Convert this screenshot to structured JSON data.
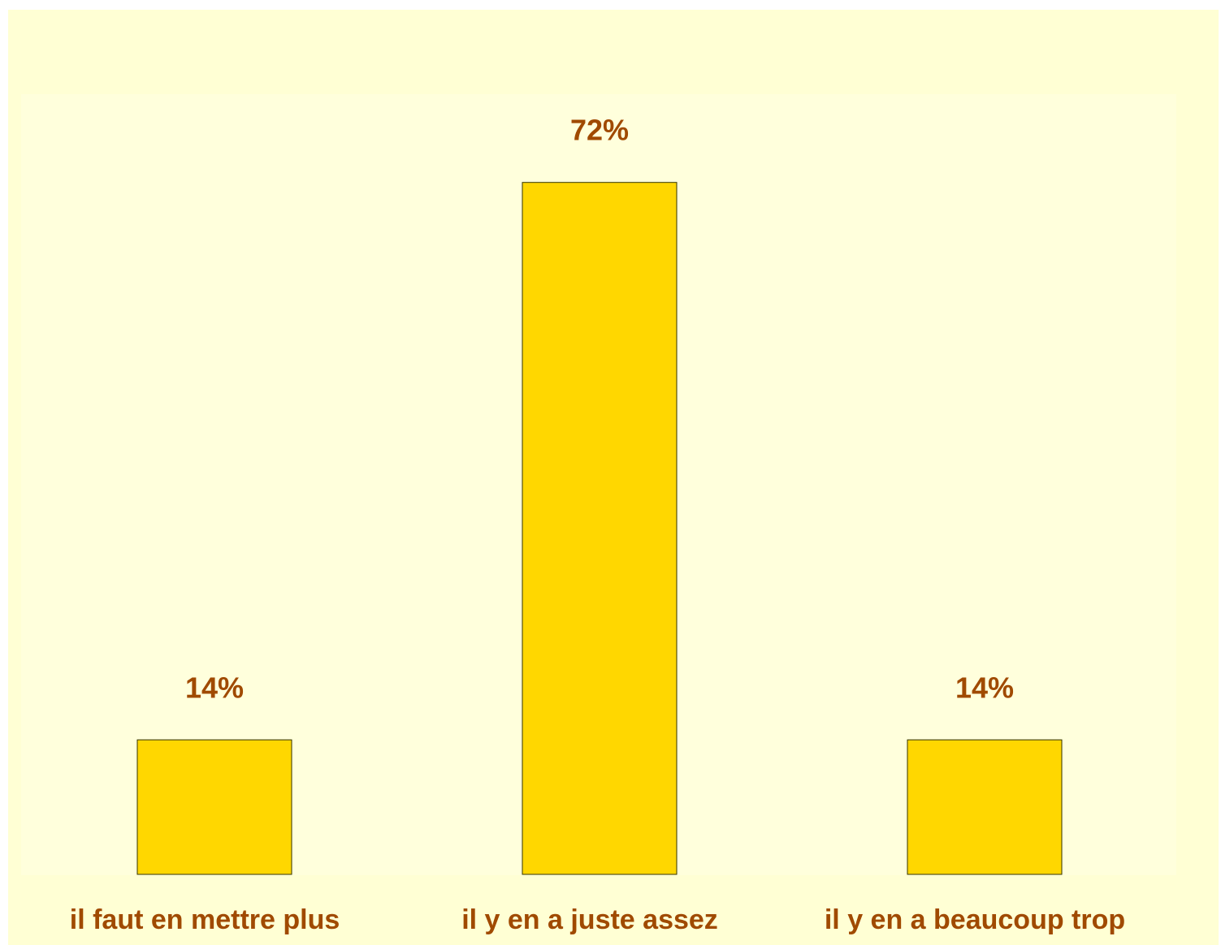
{
  "chart_data": {
    "type": "bar",
    "categories": [
      "il faut en mettre plus",
      "il y en a juste assez",
      "il y en a beaucoup trop"
    ],
    "values": [
      14,
      72,
      14
    ],
    "value_labels": [
      "14%",
      "72%",
      "14%"
    ],
    "title": "",
    "xlabel": "",
    "ylabel": "",
    "ylim": [
      0,
      80
    ],
    "grid": false,
    "legend": "none"
  },
  "colors": {
    "bar_fill": "#ffd700",
    "text": "#a04a00",
    "background": "#ffffd4",
    "plot_area": "#ffffdc"
  }
}
